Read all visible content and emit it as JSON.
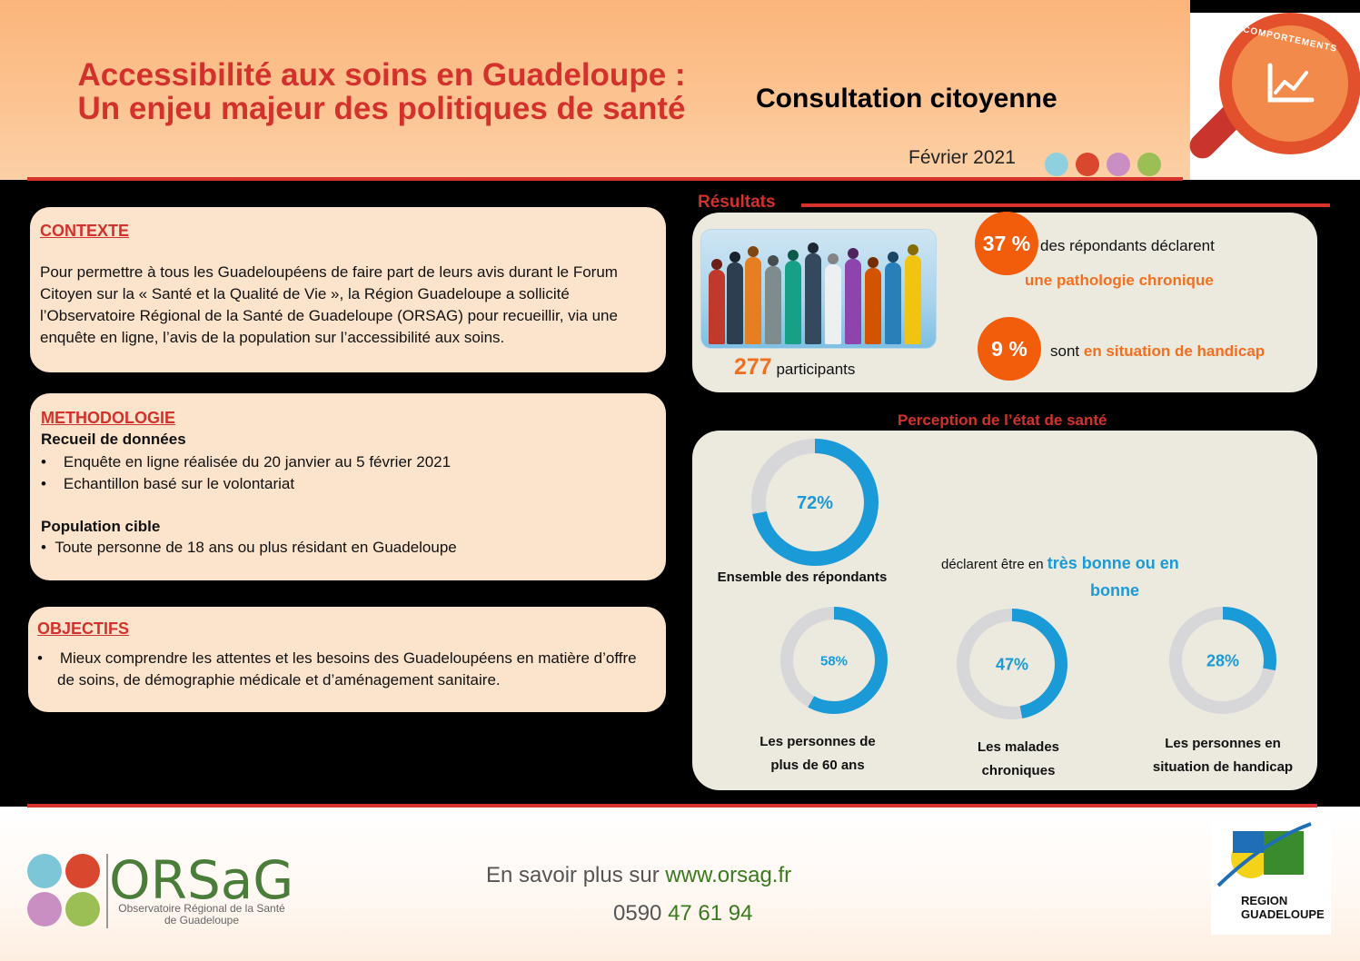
{
  "header": {
    "title_line1": "Accessibilité aux soins en Guadeloupe :",
    "title_line2": "Un enjeu majeur des politiques de santé",
    "subtitle": "Consultation citoyenne",
    "date": "Février 2021",
    "dot_colors": [
      "#8fd0df",
      "#d9472e",
      "#c98fc2",
      "#9bbf55"
    ],
    "badge_label": "COMPORTEMENTS",
    "badge_icon": "chart-trend-icon"
  },
  "contexte": {
    "heading": "CONTEXTE",
    "text": "Pour permettre à tous les Guadeloupéens de faire part de leurs avis durant le Forum Citoyen sur la « Santé et la Qualité de Vie », la Région Guadeloupe a sollicité l’Observatoire Régional de la Santé de Guadeloupe (ORSAG) pour recueillir, via une enquête en ligne, l’avis de la population sur l’accessibilité aux soins."
  },
  "methodologie": {
    "heading": "METHODOLOGIE",
    "sub1": "Recueil de données",
    "items1": [
      "Enquête en ligne réalisée du 20 janvier au 5 février 2021",
      "Echantillon basé sur le volontariat"
    ],
    "sub2": "Population cible",
    "items2": [
      "Toute personne de 18 ans ou plus résidant en Guadeloupe"
    ]
  },
  "objectifs": {
    "heading": "OBJECTIFS",
    "items": [
      "Mieux comprendre les attentes et les besoins des Guadeloupéens en matière d’offre de soins, de démographie médicale et d’aménagement sanitaire."
    ]
  },
  "resultats": {
    "heading": "Résultats",
    "participants_count": "277",
    "participants_label": "participants",
    "stat1_value": "37 %",
    "stat1_text": "des répondants déclarent",
    "stat1_highlight": "une pathologie chronique",
    "stat2_value": "9 %",
    "stat2_text": "sont",
    "stat2_highlight": "en situation de handicap"
  },
  "perception": {
    "heading": "Perception de l’état de santé",
    "mid_text": "déclarent être en",
    "mid_highlight1": "très bonne ou en",
    "mid_highlight2": "bonne",
    "donuts": [
      {
        "value": 72,
        "label": "72%",
        "caption1": "Ensemble des répondants",
        "caption2": ""
      },
      {
        "value": 58,
        "label": "58%",
        "caption1": "Les personnes de",
        "caption2": "plus de  60 ans"
      },
      {
        "value": 47,
        "label": "47%",
        "caption1": "Les malades",
        "caption2": "chroniques"
      },
      {
        "value": 28,
        "label": "28%",
        "caption1": "Les personnes en",
        "caption2": "situation de handicap"
      }
    ],
    "accent": "#1a9ad6",
    "track": "#d7d7d9"
  },
  "footer": {
    "logo": "ORSaG",
    "logo_sub": "Observatoire Régional de la Santé de Guadeloupe",
    "more_text": "En savoir plus sur",
    "url": "www.orsag.fr",
    "phone_prefix": "0590",
    "phone_rest": "47 61 94",
    "region_line1": "REGION",
    "region_line2": "GUADELOUPE"
  }
}
